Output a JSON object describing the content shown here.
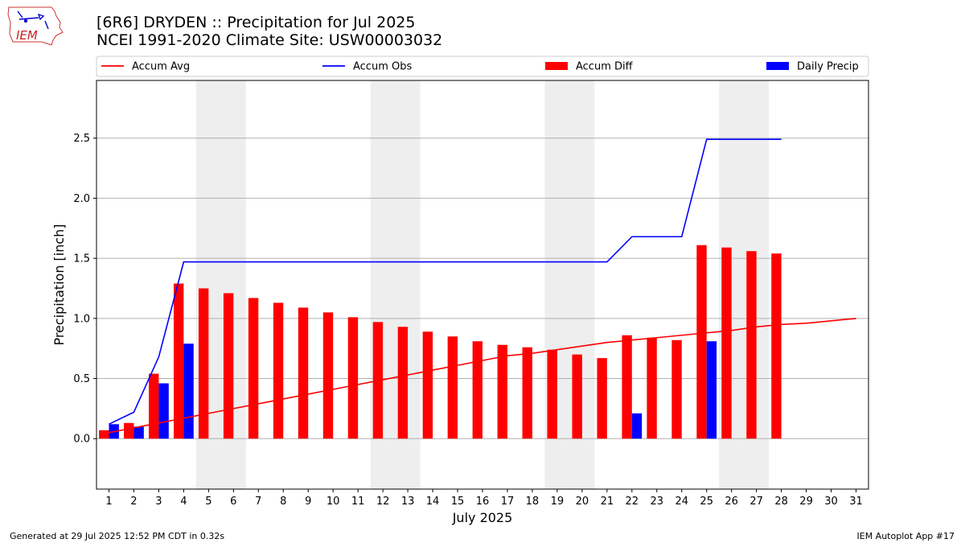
{
  "logo": {
    "text": "IEM"
  },
  "header": {
    "title_line1": "[6R6] DRYDEN :: Precipitation for Jul 2025",
    "title_line2": "NCEI 1991-2020 Climate Site: USW00003032"
  },
  "footer": {
    "generated": "Generated at 29 Jul 2025 12:52 PM CDT in 0.32s",
    "app": "IEM Autoplot App #17"
  },
  "chart_data": {
    "type": "bar",
    "xlabel": "July 2025",
    "ylabel": "Precipitation [inch]",
    "x": [
      1,
      2,
      3,
      4,
      5,
      6,
      7,
      8,
      9,
      10,
      11,
      12,
      13,
      14,
      15,
      16,
      17,
      18,
      19,
      20,
      21,
      22,
      23,
      24,
      25,
      26,
      27,
      28,
      29,
      30,
      31
    ],
    "xlim": [
      0.5,
      31.5
    ],
    "ylim": [
      -0.42,
      2.98
    ],
    "yticks": [
      0.0,
      0.5,
      1.0,
      1.5,
      2.0,
      2.5
    ],
    "ytick_labels": [
      "0.0",
      "0.5",
      "1.0",
      "1.5",
      "2.0",
      "2.5"
    ],
    "grid": "horizontal",
    "legend_position": "top",
    "weekend_shading": [
      [
        4.5,
        6.5
      ],
      [
        11.5,
        13.5
      ],
      [
        18.5,
        20.5
      ],
      [
        25.5,
        27.5
      ]
    ],
    "colors": {
      "avg": "#ff0000",
      "obs": "#0000ff",
      "diff": "#ff0000",
      "daily": "#0000ff",
      "weekend": "#eeeeee",
      "grid": "#b0b0b0"
    },
    "series": [
      {
        "name": "Accum Avg",
        "kind": "line",
        "values": [
          0.05,
          0.09,
          0.13,
          0.17,
          0.21,
          0.25,
          0.29,
          0.33,
          0.37,
          0.41,
          0.45,
          0.49,
          0.53,
          0.57,
          0.61,
          0.65,
          0.69,
          0.71,
          0.74,
          0.77,
          0.8,
          0.82,
          0.84,
          0.86,
          0.88,
          0.9,
          0.93,
          0.95,
          0.96,
          0.98,
          1.0
        ]
      },
      {
        "name": "Accum Obs",
        "kind": "line",
        "values": [
          0.12,
          0.22,
          0.68,
          1.47,
          1.47,
          1.47,
          1.47,
          1.47,
          1.47,
          1.47,
          1.47,
          1.47,
          1.47,
          1.47,
          1.47,
          1.47,
          1.47,
          1.47,
          1.47,
          1.47,
          1.47,
          1.68,
          1.68,
          1.68,
          2.49,
          2.49,
          2.49,
          2.49,
          null,
          null,
          null
        ]
      },
      {
        "name": "Accum Diff",
        "kind": "bar",
        "values": [
          0.07,
          0.13,
          0.54,
          1.29,
          1.25,
          1.21,
          1.17,
          1.13,
          1.09,
          1.05,
          1.01,
          0.97,
          0.93,
          0.89,
          0.85,
          0.81,
          0.78,
          0.76,
          0.74,
          0.7,
          0.67,
          0.86,
          0.84,
          0.82,
          1.61,
          1.59,
          1.56,
          1.54,
          null,
          null,
          null
        ]
      },
      {
        "name": "Daily Precip",
        "kind": "bar",
        "values": [
          0.12,
          0.1,
          0.46,
          0.79,
          0,
          0,
          0,
          0,
          0,
          0,
          0,
          0,
          0,
          0,
          0,
          0,
          0,
          0,
          0,
          0,
          0,
          0.21,
          0,
          0,
          0.81,
          0,
          0,
          0,
          null,
          null,
          null
        ]
      }
    ]
  }
}
